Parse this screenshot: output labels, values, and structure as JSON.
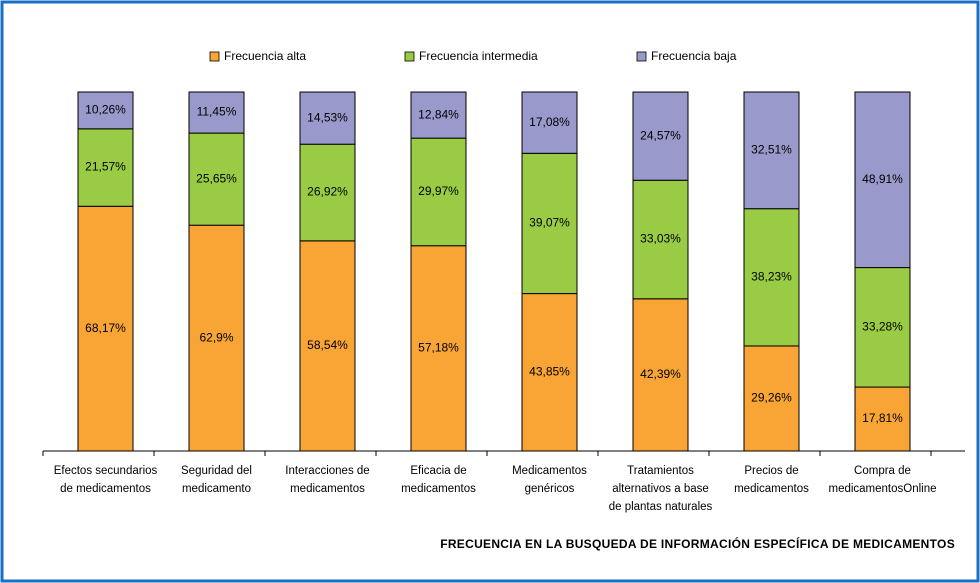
{
  "chart_data": {
    "type": "stacked_bar",
    "title": "FRECUENCIA EN LA BUSQUEDA DE INFORMACIÓN ESPECÍFICA DE MEDICAMENTOS",
    "categories": [
      "Efectos secundarios\nde medicamentos",
      "Seguridad del\nmedicamento",
      "Interacciones de\nmedicamentos",
      "Eficacia de\nmedicamentos",
      "Medicamentos\ngenéricos",
      "Tratamientos\nalternativos a base\nde plantas naturales",
      "Precios de\nmedicamentos",
      "Compra de\nmedicamentosOnline"
    ],
    "ylim": [
      0,
      100
    ],
    "legend": "top",
    "series": [
      {
        "name": "Frecuencia alta",
        "color": "#f9a535",
        "values": [
          68.17,
          62.9,
          58.54,
          57.18,
          43.85,
          42.39,
          29.26,
          17.81
        ],
        "value_labels": [
          "68,17%",
          "62,9%",
          "58,54%",
          "57,18%",
          "43,85%",
          "42,39%",
          "29,26%",
          "17,81%"
        ]
      },
      {
        "name": "Frecuencia intermedia",
        "color": "#99cc44",
        "values": [
          21.57,
          25.65,
          26.92,
          29.97,
          39.07,
          33.03,
          38.23,
          33.28
        ],
        "value_labels": [
          "21,57%",
          "25,65%",
          "26,92%",
          "29,97%",
          "39,07%",
          "33,03%",
          "38,23%",
          "33,28%"
        ]
      },
      {
        "name": "Frecuencia baja",
        "color": "#9999cc",
        "values": [
          10.26,
          11.45,
          14.53,
          12.84,
          17.08,
          24.57,
          32.51,
          48.91
        ],
        "value_labels": [
          "10,26%",
          "11,45%",
          "14,53%",
          "12,84%",
          "17,08%",
          "24,57%",
          "32,51%",
          "48,91%"
        ]
      }
    ]
  }
}
